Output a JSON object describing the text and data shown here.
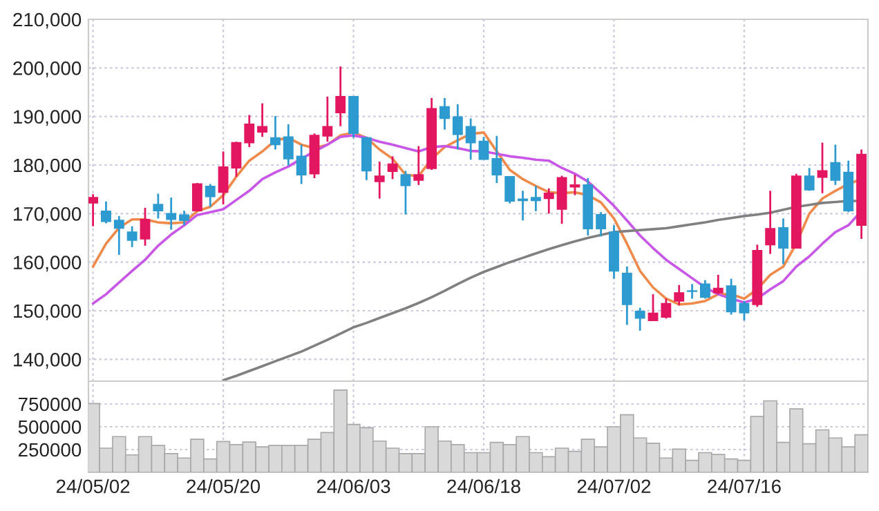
{
  "chart_data": [
    {
      "type": "candlestick",
      "categories": [
        null,
        null,
        null,
        null,
        null,
        null,
        null,
        null,
        null,
        null,
        null,
        null,
        null,
        null,
        null,
        null,
        null,
        null,
        null,
        null,
        null,
        null,
        null,
        null,
        null,
        null,
        null,
        null,
        null,
        null,
        null,
        null,
        null,
        null,
        null,
        null,
        null,
        null,
        null,
        null,
        null,
        null,
        null,
        null,
        null,
        null,
        null,
        null,
        null,
        null,
        null,
        null,
        null,
        null,
        null,
        null,
        null,
        null,
        null,
        null
      ],
      "ohlc": [
        [
          172200,
          174000,
          167400,
          173300
        ],
        [
          170500,
          172500,
          168000,
          168400
        ],
        [
          168600,
          169500,
          161500,
          167000
        ],
        [
          166200,
          167400,
          163100,
          164500
        ],
        [
          164800,
          171200,
          163400,
          168800
        ],
        [
          171900,
          174100,
          169000,
          170600
        ],
        [
          170000,
          173300,
          166700,
          168800
        ],
        [
          169700,
          170600,
          167600,
          168600
        ],
        [
          170600,
          176300,
          170500,
          176100
        ],
        [
          175600,
          176100,
          171400,
          173500
        ],
        [
          174400,
          182800,
          171900,
          179600
        ],
        [
          179400,
          184800,
          177600,
          184600
        ],
        [
          184600,
          190300,
          183700,
          188400
        ],
        [
          186800,
          192700,
          185800,
          187900
        ],
        [
          185600,
          190100,
          183200,
          184200
        ],
        [
          185800,
          188400,
          179900,
          181300
        ],
        [
          181800,
          184200,
          176100,
          178000
        ],
        [
          178200,
          186500,
          177300,
          186100
        ],
        [
          186000,
          194100,
          184800,
          187900
        ],
        [
          190800,
          200300,
          188000,
          194100
        ],
        [
          194100,
          194100,
          185600,
          186500
        ],
        [
          185600,
          185800,
          176900,
          178800
        ],
        [
          176600,
          180700,
          173100,
          177700
        ],
        [
          178700,
          181800,
          177100,
          180200
        ],
        [
          178000,
          178800,
          169800,
          175800
        ],
        [
          176900,
          183900,
          175900,
          178000
        ],
        [
          179300,
          193800,
          179000,
          191600
        ],
        [
          192000,
          193800,
          187300,
          189600
        ],
        [
          189900,
          192500,
          183200,
          186300
        ],
        [
          187900,
          189600,
          181100,
          184600
        ],
        [
          184900,
          185800,
          181100,
          181200
        ],
        [
          181300,
          186000,
          176300,
          178000
        ],
        [
          177600,
          177700,
          172100,
          172600
        ],
        [
          173000,
          174700,
          168600,
          172700
        ],
        [
          173300,
          175700,
          170500,
          172700
        ],
        [
          173100,
          175200,
          170000,
          174200
        ],
        [
          170900,
          177800,
          167900,
          177400
        ],
        [
          175500,
          178000,
          173800,
          175900
        ],
        [
          175900,
          177300,
          165500,
          166900
        ],
        [
          169800,
          170300,
          165300,
          166900
        ],
        [
          166200,
          167600,
          156600,
          158200
        ],
        [
          157700,
          159100,
          147100,
          151300
        ],
        [
          149900,
          150600,
          145900,
          148500
        ],
        [
          148000,
          153400,
          147900,
          149500
        ],
        [
          148700,
          152500,
          148400,
          151500
        ],
        [
          152000,
          155300,
          151100,
          153700
        ],
        [
          154100,
          155500,
          152500,
          154000
        ],
        [
          155500,
          156300,
          152500,
          152800
        ],
        [
          153700,
          157400,
          153400,
          154600
        ],
        [
          155100,
          156600,
          149200,
          149800
        ],
        [
          151500,
          152000,
          148000,
          149600
        ],
        [
          151300,
          163600,
          150800,
          162400
        ],
        [
          163600,
          174700,
          161700,
          166900
        ],
        [
          167100,
          169000,
          159600,
          162900
        ],
        [
          162900,
          178200,
          162900,
          177700
        ],
        [
          177700,
          179400,
          174700,
          174900
        ],
        [
          177500,
          184600,
          174200,
          178800
        ],
        [
          180500,
          184200,
          175900,
          176900
        ],
        [
          178500,
          180900,
          170300,
          170600
        ],
        [
          167600,
          183200,
          164800,
          182200
        ]
      ],
      "colors": [
        "#e2175f",
        "#2d9ad0",
        "#2d9ad0",
        "#2d9ad0",
        "#e2175f",
        "#2d9ad0",
        "#2d9ad0",
        "#2d9ad0",
        "#e2175f",
        "#2d9ad0",
        "#e2175f",
        "#e2175f",
        "#e2175f",
        "#e2175f",
        "#2d9ad0",
        "#2d9ad0",
        "#2d9ad0",
        "#e2175f",
        "#e2175f",
        "#e2175f",
        "#2d9ad0",
        "#2d9ad0",
        "#e2175f",
        "#e2175f",
        "#2d9ad0",
        "#e2175f",
        "#e2175f",
        "#2d9ad0",
        "#2d9ad0",
        "#2d9ad0",
        "#2d9ad0",
        "#2d9ad0",
        "#2d9ad0",
        "#2d9ad0",
        "#2d9ad0",
        "#e2175f",
        "#e2175f",
        "#e2175f",
        "#2d9ad0",
        "#2d9ad0",
        "#2d9ad0",
        "#2d9ad0",
        "#2d9ad0",
        "#e2175f",
        "#e2175f",
        "#e2175f",
        "#2d9ad0",
        "#2d9ad0",
        "#e2175f",
        "#2d9ad0",
        "#2d9ad0",
        "#e2175f",
        "#e2175f",
        "#2d9ad0",
        "#e2175f",
        "#2d9ad0",
        "#e2175f",
        "#2d9ad0",
        "#2d9ad0",
        "#e2175f"
      ],
      "series": [
        {
          "type": "line",
          "color": "#f08a4b",
          "values": [
            159100,
            163800,
            167100,
            168800,
            168800,
            168200,
            168000,
            168200,
            170500,
            171400,
            173800,
            177600,
            180900,
            182800,
            185100,
            185600,
            184200,
            183500,
            184200,
            186100,
            186700,
            185600,
            183200,
            181300,
            178000,
            177700,
            181300,
            183700,
            185100,
            186400,
            186700,
            182800,
            179000,
            177100,
            175700,
            174400,
            174200,
            174400,
            173800,
            172300,
            169000,
            163800,
            158200,
            154800,
            152500,
            151300,
            151500,
            152000,
            153400,
            153400,
            152500,
            154400,
            157400,
            159100,
            163800,
            170000,
            173100,
            174700,
            176100,
            177100
          ]
        },
        {
          "type": "line",
          "color": "#c857e8",
          "values": [
            151500,
            153400,
            155800,
            158200,
            160500,
            163400,
            165700,
            167600,
            169700,
            170300,
            170900,
            172800,
            174700,
            177100,
            178500,
            179700,
            181300,
            182800,
            184200,
            185800,
            186100,
            185600,
            184800,
            184200,
            183500,
            182800,
            183700,
            183900,
            183500,
            182900,
            182800,
            182300,
            181800,
            181500,
            181100,
            180900,
            179400,
            178200,
            176600,
            174200,
            171600,
            168600,
            165500,
            162900,
            160500,
            158600,
            156700,
            154800,
            153400,
            152500,
            151700,
            152500,
            154400,
            156100,
            159100,
            161200,
            163800,
            166200,
            167600,
            170500
          ]
        },
        {
          "type": "line",
          "color": "#808080",
          "values": [
            null,
            null,
            null,
            null,
            null,
            null,
            null,
            null,
            null,
            null,
            135700,
            136600,
            137600,
            138600,
            139600,
            140600,
            141600,
            142800,
            144000,
            145300,
            146600,
            147500,
            148500,
            149500,
            150500,
            151600,
            152800,
            154100,
            155500,
            156800,
            158000,
            159000,
            160000,
            160900,
            161800,
            162700,
            163500,
            164300,
            165000,
            165600,
            166200,
            166400,
            166600,
            166800,
            167000,
            167400,
            167800,
            168200,
            168700,
            169100,
            169500,
            169800,
            170200,
            170800,
            171400,
            171800,
            172200,
            172400,
            172600,
            172600
          ]
        }
      ],
      "ylim": [
        135500,
        210000
      ],
      "yticks": [
        {
          "value": 140000,
          "label": "140,000"
        },
        {
          "value": 150000,
          "label": "150,000"
        },
        {
          "value": 160000,
          "label": "160,000"
        },
        {
          "value": 170000,
          "label": "170,000"
        },
        {
          "value": 180000,
          "label": "180,000"
        },
        {
          "value": 190000,
          "label": "190,000"
        },
        {
          "value": 200000,
          "label": "200,000"
        },
        {
          "value": 210000,
          "label": "210,000"
        }
      ],
      "grid": true,
      "tick_labels": "y"
    },
    {
      "type": "bar",
      "categories": [
        "24/05/02",
        null,
        null,
        null,
        null,
        null,
        null,
        null,
        null,
        null,
        "24/05/20",
        null,
        null,
        null,
        null,
        null,
        null,
        null,
        null,
        null,
        "24/06/03",
        null,
        null,
        null,
        null,
        null,
        null,
        null,
        null,
        null,
        "24/06/18",
        null,
        null,
        null,
        null,
        null,
        null,
        null,
        null,
        null,
        "24/07/02",
        null,
        null,
        null,
        null,
        null,
        null,
        null,
        null,
        null,
        "24/07/16",
        null,
        null,
        null,
        null,
        null,
        null,
        null,
        null,
        null
      ],
      "values": [
        755000,
        265000,
        392000,
        191000,
        392000,
        294000,
        206000,
        157000,
        363000,
        147000,
        338000,
        304000,
        333000,
        279000,
        294000,
        294000,
        294000,
        363000,
        436000,
        902000,
        525000,
        490000,
        343000,
        265000,
        206000,
        206000,
        500000,
        343000,
        304000,
        216000,
        216000,
        328000,
        304000,
        392000,
        216000,
        172000,
        265000,
        230000,
        363000,
        279000,
        500000,
        632000,
        377000,
        319000,
        157000,
        255000,
        132000,
        216000,
        196000,
        147000,
        132000,
        613000,
        784000,
        328000,
        696000,
        314000,
        466000,
        377000,
        279000,
        412000
      ],
      "color": "#d9d9d9",
      "ylim": [
        0,
        1000000
      ],
      "yticks": [
        250000,
        500000,
        750000
      ],
      "grid": true
    }
  ]
}
